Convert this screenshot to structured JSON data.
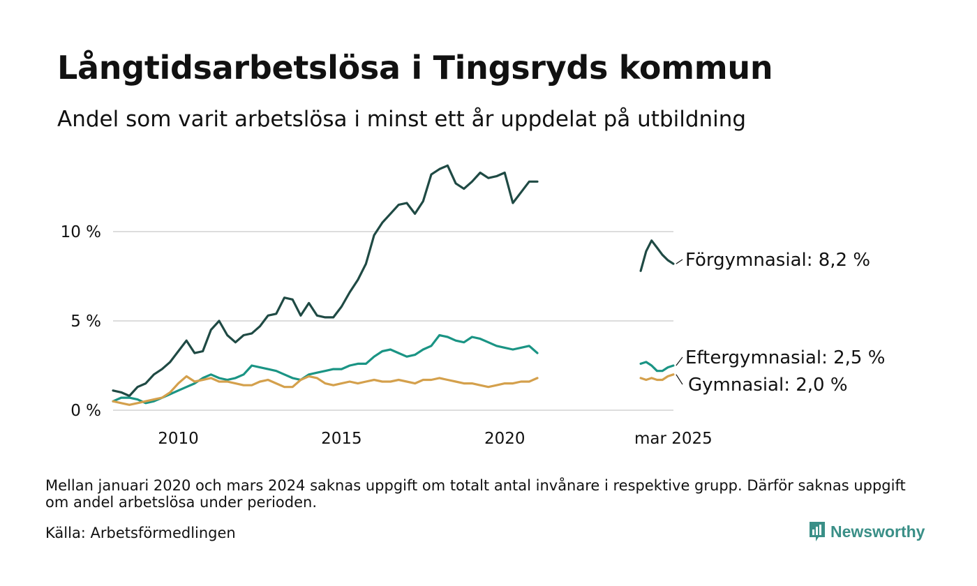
{
  "title": "Långtidsarbetslösa i Tingsryds kommun",
  "subtitle": "Andel som varit arbetslösa i minst ett år uppdelat på utbildning",
  "note": "Mellan januari 2020 och mars 2024 saknas uppgift om totalt antal invånare i respektive grupp. Därför saknas uppgift om andel arbetslösa under perioden.",
  "source": "Källa: Arbetsförmedlingen",
  "brand": {
    "name": "Newsworthy",
    "icon": "newsworthy-logo-icon",
    "color": "#3a8f87"
  },
  "chart_data": {
    "type": "line",
    "y_ticks": [
      {
        "value": 0,
        "label": "0 %"
      },
      {
        "value": 5,
        "label": "5 %"
      },
      {
        "value": 10,
        "label": "10 %"
      }
    ],
    "x_ticks": [
      {
        "value": 2010,
        "label": "2010"
      },
      {
        "value": 2015,
        "label": "2015"
      },
      {
        "value": 2020,
        "label": "2020"
      },
      {
        "value": 2025.167,
        "label": "mar 2025"
      }
    ],
    "xlim": [
      2008.0,
      2025.17
    ],
    "ylim": [
      0,
      14
    ],
    "grid": true,
    "legend": "end-labels",
    "series": [
      {
        "name": "Förgymnasial",
        "end_label": "Förgymnasial: 8,2 %",
        "color": "#1f4a44",
        "segments": [
          {
            "x": [
              2008.0,
              2008.25,
              2008.5,
              2008.75,
              2009.0,
              2009.25,
              2009.5,
              2009.75,
              2010.0,
              2010.25,
              2010.5,
              2010.75,
              2011.0,
              2011.25,
              2011.5,
              2011.75,
              2012.0,
              2012.25,
              2012.5,
              2012.75,
              2013.0,
              2013.25,
              2013.5,
              2013.75,
              2014.0,
              2014.25,
              2014.5,
              2014.75,
              2015.0,
              2015.25,
              2015.5,
              2015.75,
              2016.0,
              2016.25,
              2016.5,
              2016.75,
              2017.0,
              2017.25,
              2017.5,
              2017.75,
              2018.0,
              2018.25,
              2018.5,
              2018.75,
              2019.0,
              2019.25,
              2019.5,
              2019.75,
              2020.0,
              2020.25,
              2020.5,
              2020.75,
              2021.0
            ],
            "y": [
              1.1,
              1.0,
              0.8,
              1.3,
              1.5,
              2.0,
              2.3,
              2.7,
              3.3,
              3.9,
              3.2,
              3.3,
              4.5,
              5.0,
              4.2,
              3.8,
              4.2,
              4.3,
              4.7,
              5.3,
              5.4,
              6.3,
              6.2,
              5.3,
              6.0,
              5.3,
              5.2,
              5.2,
              5.8,
              6.6,
              7.3,
              8.2,
              9.8,
              10.5,
              11.0,
              11.5,
              11.6,
              11.0,
              11.7,
              13.2,
              13.5,
              13.7,
              12.7,
              12.4,
              12.8,
              13.3,
              13.0,
              13.1,
              13.3,
              11.6,
              12.2,
              12.8,
              12.8
            ]
          },
          {
            "x": [
              2024.167,
              2024.333,
              2024.5,
              2024.667,
              2024.833,
              2025.0,
              2025.167
            ],
            "y": [
              7.8,
              8.9,
              9.5,
              9.1,
              8.7,
              8.4,
              8.2
            ]
          }
        ]
      },
      {
        "name": "Eftergymnasial",
        "end_label": "Eftergymnasial: 2,5 %",
        "color": "#1a9484",
        "segments": [
          {
            "x": [
              2008.0,
              2008.25,
              2008.5,
              2008.75,
              2009.0,
              2009.25,
              2009.5,
              2009.75,
              2010.0,
              2010.25,
              2010.5,
              2010.75,
              2011.0,
              2011.25,
              2011.5,
              2011.75,
              2012.0,
              2012.25,
              2012.5,
              2012.75,
              2013.0,
              2013.25,
              2013.5,
              2013.75,
              2014.0,
              2014.25,
              2014.5,
              2014.75,
              2015.0,
              2015.25,
              2015.5,
              2015.75,
              2016.0,
              2016.25,
              2016.5,
              2016.75,
              2017.0,
              2017.25,
              2017.5,
              2017.75,
              2018.0,
              2018.25,
              2018.5,
              2018.75,
              2019.0,
              2019.25,
              2019.5,
              2019.75,
              2020.0,
              2020.25,
              2020.5,
              2020.75,
              2021.0
            ],
            "y": [
              0.5,
              0.7,
              0.7,
              0.6,
              0.4,
              0.5,
              0.7,
              0.9,
              1.1,
              1.3,
              1.5,
              1.8,
              2.0,
              1.8,
              1.7,
              1.8,
              2.0,
              2.5,
              2.4,
              2.3,
              2.2,
              2.0,
              1.8,
              1.7,
              2.0,
              2.1,
              2.2,
              2.3,
              2.3,
              2.5,
              2.6,
              2.6,
              3.0,
              3.3,
              3.4,
              3.2,
              3.0,
              3.1,
              3.4,
              3.6,
              4.2,
              4.1,
              3.9,
              3.8,
              4.1,
              4.0,
              3.8,
              3.6,
              3.5,
              3.4,
              3.5,
              3.6,
              3.2
            ]
          },
          {
            "x": [
              2024.167,
              2024.333,
              2024.5,
              2024.667,
              2024.833,
              2025.0,
              2025.167
            ],
            "y": [
              2.6,
              2.7,
              2.5,
              2.2,
              2.2,
              2.4,
              2.5
            ]
          }
        ]
      },
      {
        "name": "Gymnasial",
        "end_label": "Gymnasial: 2,0 %",
        "color": "#d4a04c",
        "segments": [
          {
            "x": [
              2008.0,
              2008.25,
              2008.5,
              2008.75,
              2009.0,
              2009.25,
              2009.5,
              2009.75,
              2010.0,
              2010.25,
              2010.5,
              2010.75,
              2011.0,
              2011.25,
              2011.5,
              2011.75,
              2012.0,
              2012.25,
              2012.5,
              2012.75,
              2013.0,
              2013.25,
              2013.5,
              2013.75,
              2014.0,
              2014.25,
              2014.5,
              2014.75,
              2015.0,
              2015.25,
              2015.5,
              2015.75,
              2016.0,
              2016.25,
              2016.5,
              2016.75,
              2017.0,
              2017.25,
              2017.5,
              2017.75,
              2018.0,
              2018.25,
              2018.5,
              2018.75,
              2019.0,
              2019.25,
              2019.5,
              2019.75,
              2020.0,
              2020.25,
              2020.5,
              2020.75,
              2021.0
            ],
            "y": [
              0.5,
              0.4,
              0.3,
              0.4,
              0.5,
              0.6,
              0.7,
              1.0,
              1.5,
              1.9,
              1.6,
              1.7,
              1.8,
              1.6,
              1.6,
              1.5,
              1.4,
              1.4,
              1.6,
              1.7,
              1.5,
              1.3,
              1.3,
              1.7,
              1.9,
              1.8,
              1.5,
              1.4,
              1.5,
              1.6,
              1.5,
              1.6,
              1.7,
              1.6,
              1.6,
              1.7,
              1.6,
              1.5,
              1.7,
              1.7,
              1.8,
              1.7,
              1.6,
              1.5,
              1.5,
              1.4,
              1.3,
              1.4,
              1.5,
              1.5,
              1.6,
              1.6,
              1.8
            ]
          },
          {
            "x": [
              2024.167,
              2024.333,
              2024.5,
              2024.667,
              2024.833,
              2025.0,
              2025.167
            ],
            "y": [
              1.8,
              1.7,
              1.8,
              1.7,
              1.7,
              1.9,
              2.0
            ]
          }
        ]
      }
    ]
  }
}
